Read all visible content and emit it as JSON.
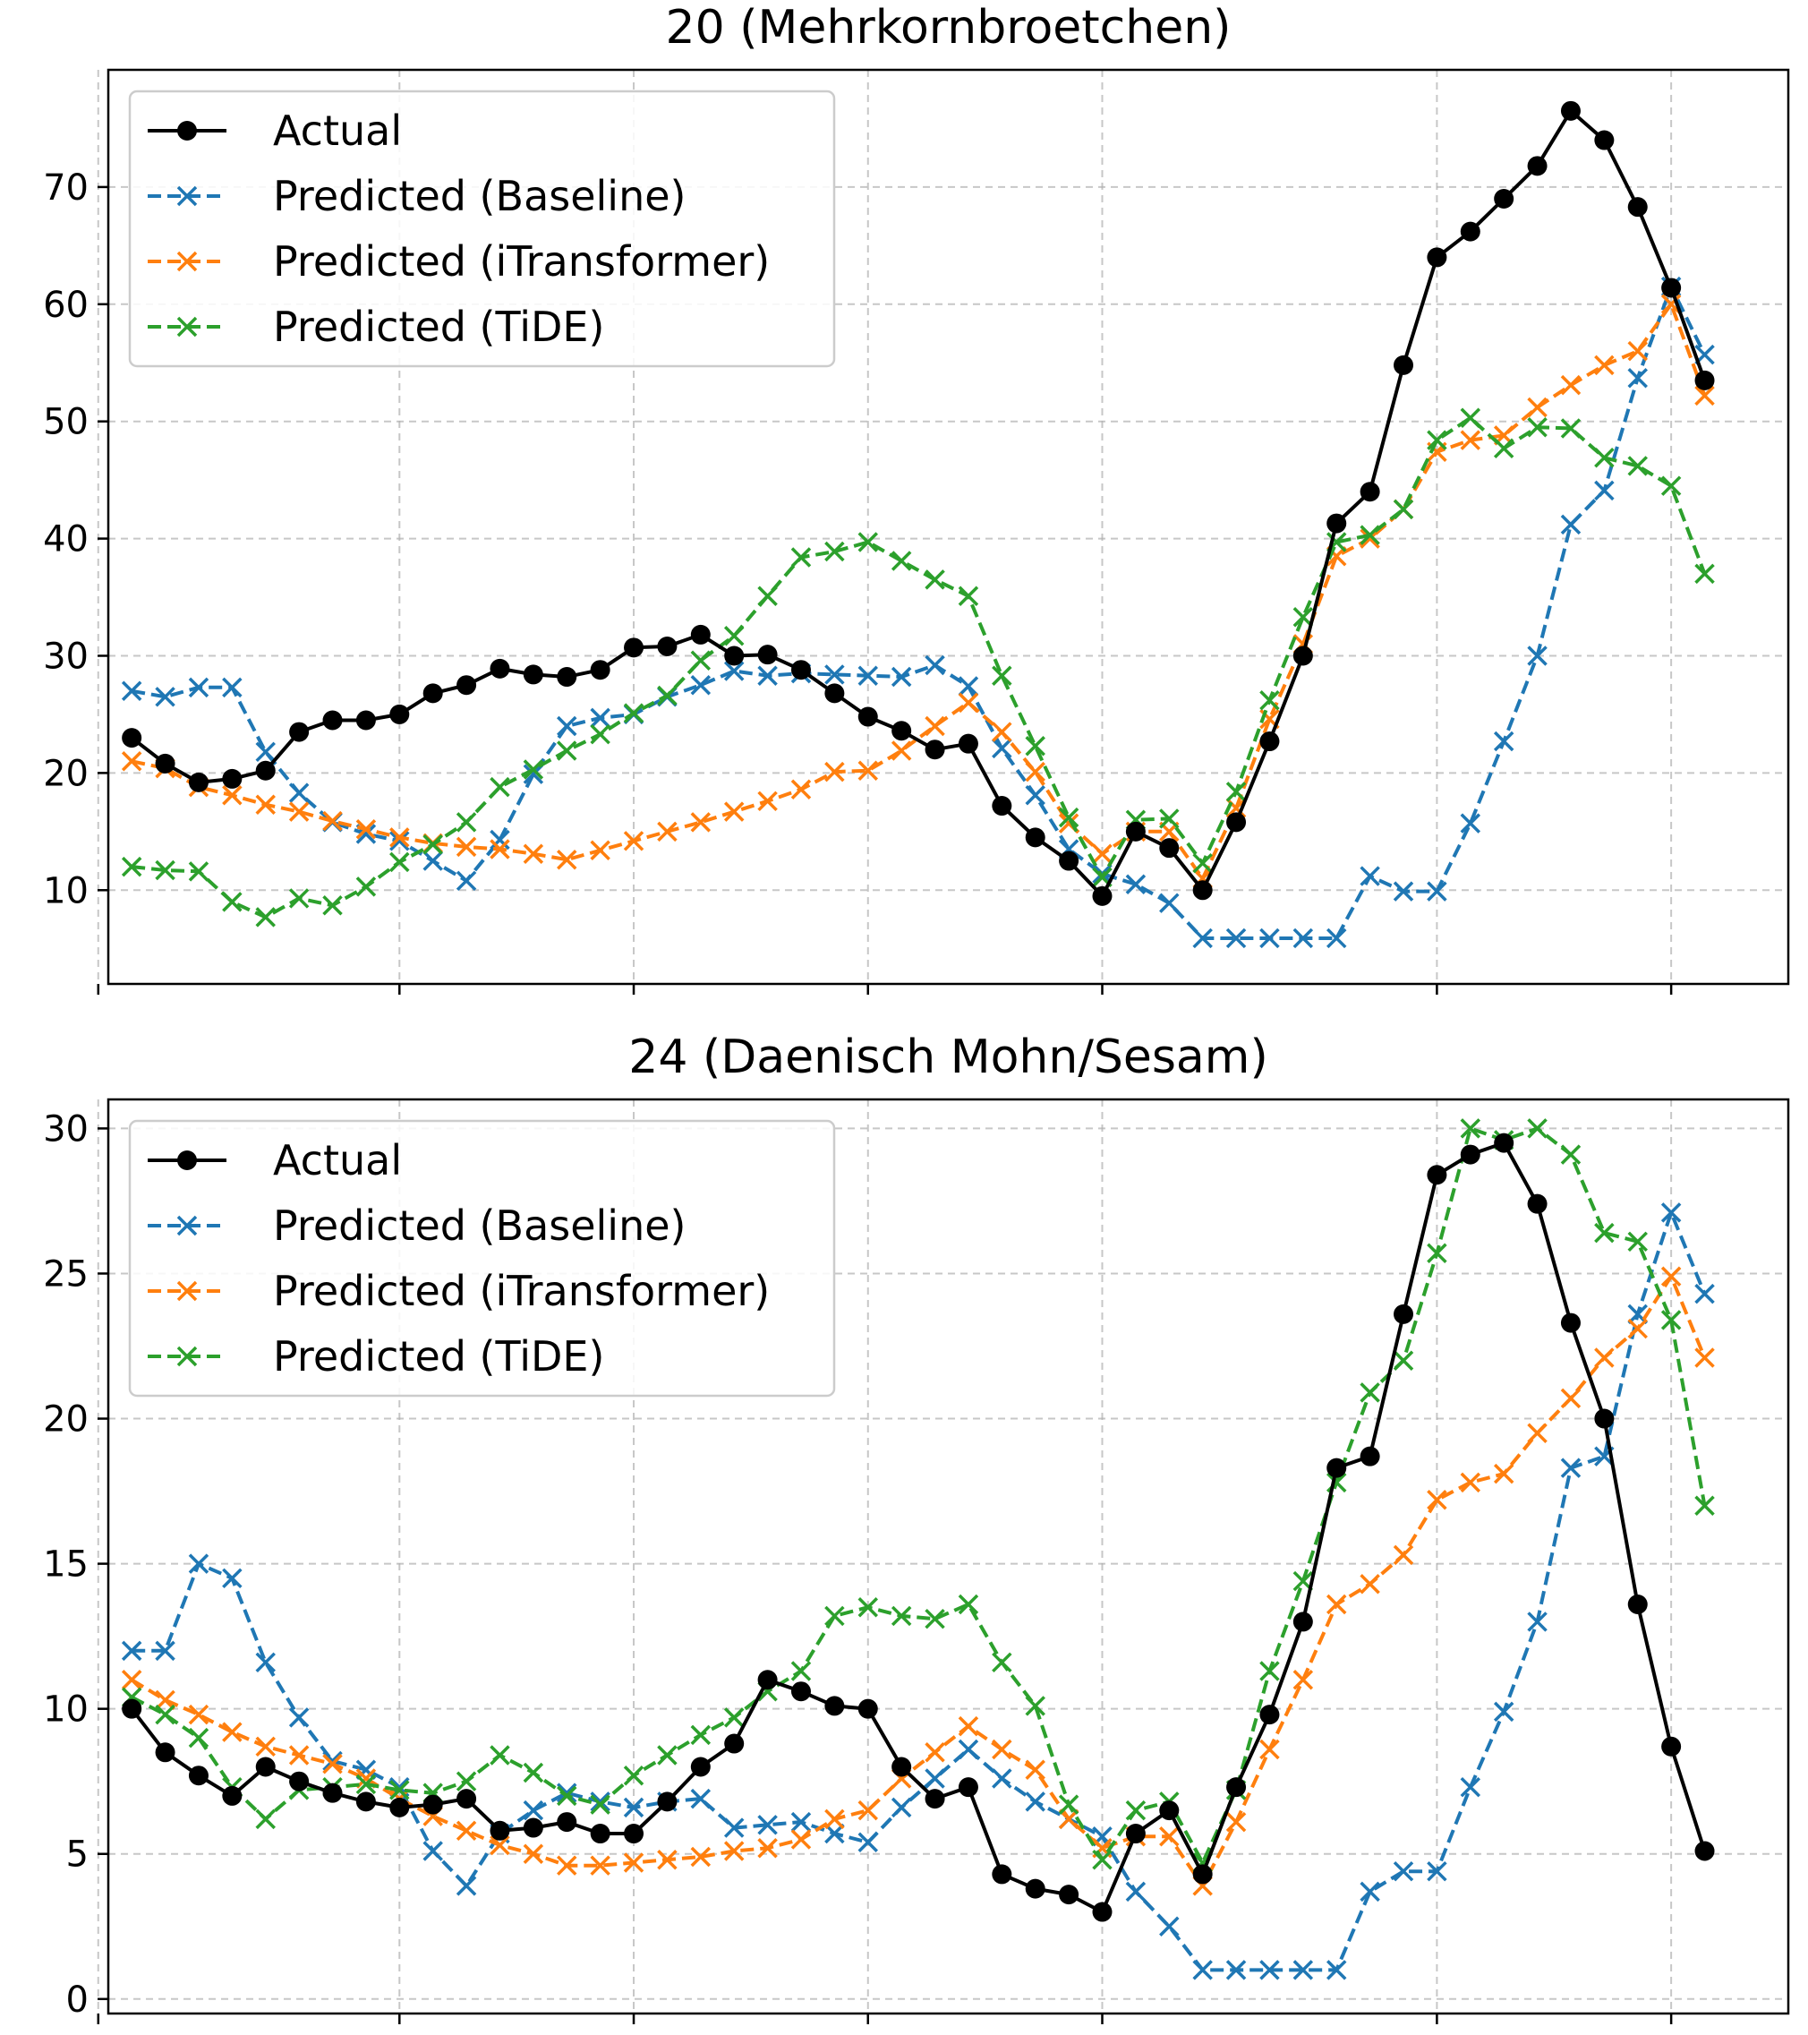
{
  "chart_data": [
    {
      "type": "line",
      "title": "20 (Mehrkornbroetchen)",
      "xlabel": "",
      "ylabel": "",
      "ylim": [
        2,
        80
      ],
      "yticks": [
        10,
        20,
        30,
        40,
        50,
        60,
        70
      ],
      "legend_position": "top-left",
      "grid": true,
      "x_tick_positions": [
        0,
        9,
        16,
        23,
        30,
        40,
        47
      ],
      "x": [
        1,
        2,
        3,
        4,
        5,
        6,
        7,
        8,
        9,
        10,
        11,
        12,
        13,
        14,
        15,
        16,
        17,
        18,
        19,
        20,
        21,
        22,
        23,
        24,
        25,
        26,
        27,
        28,
        29,
        30,
        31,
        32,
        33,
        34,
        35,
        36,
        37,
        38,
        39,
        40,
        41,
        42,
        43,
        44,
        45,
        46,
        47,
        48
      ],
      "series": [
        {
          "name": "Actual",
          "color": "#000000",
          "style": "solid",
          "marker": "circle",
          "values": [
            23,
            20.8,
            19.2,
            19.5,
            20.2,
            23.5,
            24.5,
            24.5,
            25,
            26.8,
            27.5,
            28.9,
            28.4,
            28.2,
            28.8,
            30.7,
            30.8,
            31.8,
            30,
            30.1,
            28.8,
            26.8,
            24.8,
            23.6,
            22,
            22.5,
            17.2,
            14.5,
            12.5,
            9.5,
            15,
            13.6,
            10,
            15.8,
            22.7,
            30,
            41.3,
            44,
            54.8,
            64,
            66.2,
            69,
            71.8,
            76.5,
            74,
            68.3,
            61.4,
            53.5
          ]
        },
        {
          "name": "Predicted (Baseline)",
          "color": "#1f77b4",
          "style": "dashed",
          "marker": "x",
          "values": [
            27,
            26.5,
            27.3,
            27.3,
            21.8,
            18.3,
            15.8,
            14.8,
            14.2,
            12.5,
            10.8,
            14.3,
            19.9,
            24,
            24.7,
            25,
            26.5,
            27.5,
            28.7,
            28.3,
            28.5,
            28.4,
            28.3,
            28.2,
            29.2,
            27.4,
            22.1,
            18.1,
            13.5,
            11.4,
            10.5,
            8.9,
            5.9,
            5.9,
            5.9,
            5.9,
            5.9,
            11.2,
            9.9,
            9.9,
            15.7,
            22.7,
            30,
            41.2,
            44.1,
            53.7,
            61.5,
            55.7
          ]
        },
        {
          "name": "Predicted (iTransformer)",
          "color": "#ff7f0e",
          "style": "dashed",
          "marker": "x",
          "values": [
            21,
            20.4,
            18.8,
            18.1,
            17.3,
            16.7,
            15.9,
            15.2,
            14.5,
            14,
            13.7,
            13.5,
            13.1,
            12.6,
            13.4,
            14.2,
            15,
            15.8,
            16.7,
            17.6,
            18.6,
            20.1,
            20.2,
            21.9,
            24,
            26,
            23.5,
            20.1,
            15.7,
            13.1,
            15,
            15,
            11,
            17,
            24.6,
            31,
            38.5,
            40,
            42.5,
            47.4,
            48.4,
            48.8,
            51.2,
            53.1,
            54.8,
            56,
            60,
            52.2
          ]
        },
        {
          "name": "Predicted (TiDE)",
          "color": "#2ca02c",
          "style": "dashed",
          "marker": "x",
          "values": [
            12,
            11.7,
            11.6,
            9,
            7.7,
            9.3,
            8.7,
            10.3,
            12.4,
            13.9,
            15.8,
            18.8,
            20.3,
            21.9,
            23.3,
            25.1,
            26.6,
            29.6,
            31.7,
            35.1,
            38.4,
            38.9,
            39.7,
            38.1,
            36.5,
            35.1,
            28.3,
            22.3,
            16.2,
            11.1,
            16,
            16.1,
            12.3,
            18.4,
            26.2,
            33.3,
            39.7,
            40.3,
            42.5,
            48.4,
            50.3,
            47.7,
            49.5,
            49.4,
            46.9,
            46.2,
            44.5,
            37
          ]
        }
      ]
    },
    {
      "type": "line",
      "title": "24 (Daenisch Mohn/Sesam)",
      "xlabel": "",
      "ylabel": "",
      "ylim": [
        -0.5,
        31
      ],
      "yticks": [
        0,
        5,
        10,
        15,
        20,
        25,
        30
      ],
      "legend_position": "top-left",
      "grid": true,
      "x_tick_positions": [
        0,
        9,
        16,
        23,
        30,
        40,
        47
      ],
      "x": [
        1,
        2,
        3,
        4,
        5,
        6,
        7,
        8,
        9,
        10,
        11,
        12,
        13,
        14,
        15,
        16,
        17,
        18,
        19,
        20,
        21,
        22,
        23,
        24,
        25,
        26,
        27,
        28,
        29,
        30,
        31,
        32,
        33,
        34,
        35,
        36,
        37,
        38,
        39,
        40,
        41,
        42,
        43,
        44,
        45,
        46,
        47,
        48
      ],
      "series": [
        {
          "name": "Actual",
          "color": "#000000",
          "style": "solid",
          "marker": "circle",
          "values": [
            10,
            8.5,
            7.7,
            7,
            8,
            7.5,
            7.1,
            6.8,
            6.6,
            6.7,
            6.9,
            5.8,
            5.9,
            6.1,
            5.7,
            5.7,
            6.8,
            8,
            8.8,
            11,
            10.6,
            10.1,
            10,
            8,
            6.9,
            7.3,
            4.3,
            3.8,
            3.6,
            3,
            5.7,
            6.5,
            4.3,
            7.3,
            9.8,
            13,
            18.3,
            18.7,
            23.6,
            28.4,
            29.1,
            29.5,
            27.4,
            23.3,
            20,
            13.6,
            8.7,
            5.1
          ]
        },
        {
          "name": "Predicted (Baseline)",
          "color": "#1f77b4",
          "style": "dashed",
          "marker": "x",
          "values": [
            12,
            12,
            15,
            14.5,
            11.6,
            9.7,
            8.2,
            7.9,
            7.3,
            5.1,
            3.9,
            5.7,
            6.5,
            7.1,
            6.8,
            6.6,
            6.8,
            6.9,
            5.9,
            6,
            6.1,
            5.7,
            5.4,
            6.6,
            7.6,
            8.6,
            7.6,
            6.8,
            6.2,
            5.6,
            3.7,
            2.5,
            1,
            1,
            1,
            1,
            1,
            3.7,
            4.4,
            4.4,
            7.3,
            9.9,
            13,
            18.3,
            18.7,
            23.6,
            27.1,
            24.3
          ]
        },
        {
          "name": "Predicted (iTransformer)",
          "color": "#ff7f0e",
          "style": "dashed",
          "marker": "x",
          "values": [
            11,
            10.3,
            9.8,
            9.2,
            8.7,
            8.4,
            8.1,
            7.6,
            6.9,
            6.3,
            5.8,
            5.3,
            5,
            4.6,
            4.6,
            4.7,
            4.8,
            4.9,
            5.1,
            5.2,
            5.5,
            6.2,
            6.5,
            7.6,
            8.5,
            9.4,
            8.6,
            7.9,
            6.2,
            5.2,
            5.6,
            5.6,
            3.9,
            6.1,
            8.6,
            11,
            13.6,
            14.3,
            15.3,
            17.2,
            17.8,
            18.1,
            19.5,
            20.7,
            22.1,
            23.1,
            24.9,
            22.1
          ]
        },
        {
          "name": "Predicted (TiDE)",
          "color": "#2ca02c",
          "style": "dashed",
          "marker": "x",
          "values": [
            10.4,
            9.8,
            9,
            7.3,
            6.2,
            7.2,
            7.3,
            7.4,
            7.2,
            7.1,
            7.5,
            8.4,
            7.8,
            7,
            6.7,
            7.7,
            8.4,
            9.1,
            9.7,
            10.6,
            11.3,
            13.2,
            13.5,
            13.2,
            13.1,
            13.6,
            11.6,
            10.1,
            6.7,
            4.8,
            6.5,
            6.8,
            4.7,
            7.2,
            11.3,
            14.4,
            17.8,
            20.9,
            22,
            25.7,
            30,
            29.6,
            30,
            29.1,
            26.4,
            26.1,
            23.4,
            17
          ]
        }
      ]
    }
  ]
}
